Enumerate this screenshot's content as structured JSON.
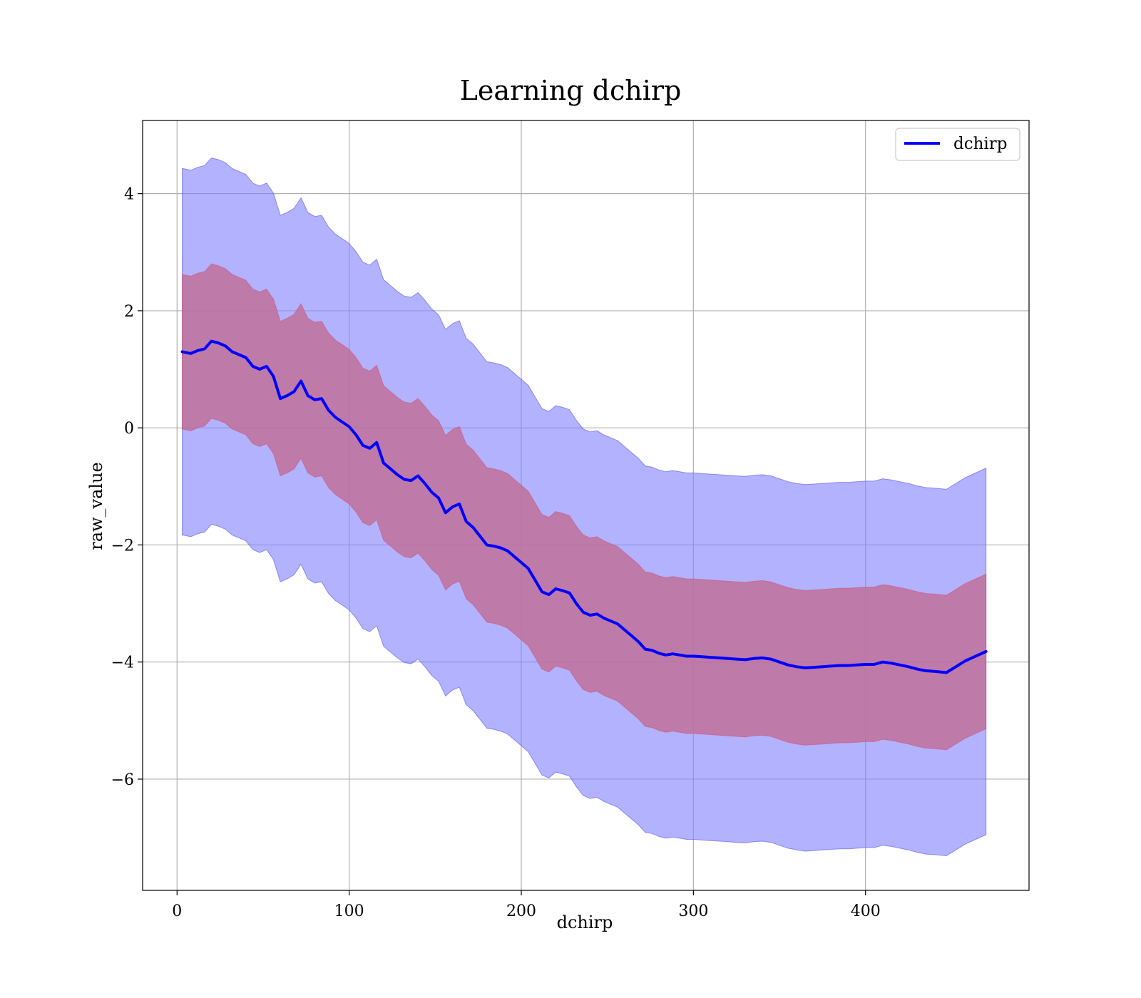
{
  "chart_data": {
    "type": "line",
    "title": "Learning dchirp",
    "xlabel": "dchirp",
    "ylabel": "raw_value",
    "xlim": [
      -20,
      495
    ],
    "ylim": [
      -7.9,
      5.25
    ],
    "xticks": [
      0,
      100,
      200,
      300,
      400
    ],
    "yticks": [
      4,
      2,
      0,
      -2,
      -4,
      -6
    ],
    "ytick_labels": [
      "4",
      "2",
      "0",
      "−2",
      "−4",
      "−6"
    ],
    "grid": true,
    "legend_position": "top-right",
    "colors": {
      "line": "#0000ff",
      "outer_band": "#7f7fff",
      "inner_band": "#c0709a"
    },
    "series": [
      {
        "name": "dchirp",
        "x": [
          3,
          8,
          12,
          16,
          20,
          24,
          28,
          32,
          36,
          40,
          44,
          48,
          52,
          56,
          60,
          64,
          68,
          72,
          76,
          80,
          84,
          88,
          92,
          96,
          100,
          104,
          108,
          112,
          116,
          120,
          124,
          128,
          132,
          136,
          140,
          144,
          148,
          152,
          156,
          160,
          164,
          168,
          172,
          176,
          180,
          184,
          188,
          192,
          196,
          200,
          204,
          208,
          212,
          216,
          220,
          224,
          228,
          232,
          236,
          240,
          244,
          248,
          252,
          256,
          260,
          264,
          268,
          272,
          276,
          280,
          284,
          288,
          292,
          296,
          300,
          305,
          310,
          315,
          320,
          325,
          330,
          335,
          340,
          345,
          350,
          355,
          360,
          365,
          370,
          375,
          380,
          385,
          390,
          395,
          400,
          405,
          410,
          415,
          420,
          425,
          430,
          435,
          440,
          447,
          458,
          470
        ],
        "y": [
          1.3,
          1.27,
          1.32,
          1.35,
          1.48,
          1.45,
          1.4,
          1.3,
          1.25,
          1.2,
          1.05,
          1.0,
          1.05,
          0.88,
          0.5,
          0.55,
          0.62,
          0.8,
          0.55,
          0.48,
          0.5,
          0.3,
          0.18,
          0.1,
          0.02,
          -0.12,
          -0.3,
          -0.35,
          -0.25,
          -0.6,
          -0.7,
          -0.8,
          -0.88,
          -0.9,
          -0.82,
          -0.95,
          -1.1,
          -1.2,
          -1.45,
          -1.35,
          -1.3,
          -1.6,
          -1.7,
          -1.85,
          -2.0,
          -2.02,
          -2.05,
          -2.1,
          -2.2,
          -2.3,
          -2.4,
          -2.6,
          -2.8,
          -2.85,
          -2.75,
          -2.78,
          -2.82,
          -3.0,
          -3.15,
          -3.2,
          -3.18,
          -3.25,
          -3.3,
          -3.35,
          -3.45,
          -3.55,
          -3.65,
          -3.78,
          -3.8,
          -3.85,
          -3.88,
          -3.86,
          -3.88,
          -3.9,
          -3.9,
          -3.91,
          -3.92,
          -3.93,
          -3.94,
          -3.95,
          -3.96,
          -3.94,
          -3.93,
          -3.95,
          -4.0,
          -4.05,
          -4.08,
          -4.1,
          -4.09,
          -4.08,
          -4.07,
          -4.06,
          -4.06,
          -4.05,
          -4.04,
          -4.04,
          -4.0,
          -4.02,
          -4.05,
          -4.08,
          -4.12,
          -4.15,
          -4.16,
          -4.18,
          -3.98,
          -3.82
        ]
      }
    ],
    "bands": [
      {
        "role": "inner",
        "half_width": 1.32
      },
      {
        "role": "outer",
        "half_width": 3.13
      }
    ]
  }
}
